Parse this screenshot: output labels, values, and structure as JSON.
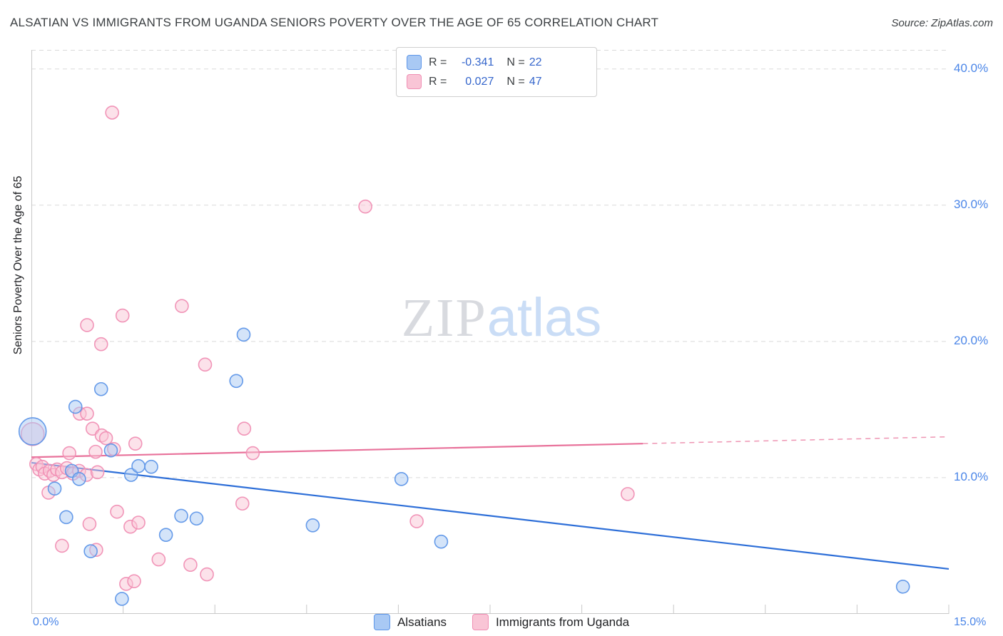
{
  "header": {
    "title": "ALSATIAN VS IMMIGRANTS FROM UGANDA SENIORS POVERTY OVER THE AGE OF 65 CORRELATION CHART",
    "source": "Source: ZipAtlas.com"
  },
  "watermark": {
    "part1": "ZIP",
    "part2": "atlas"
  },
  "axes": {
    "y_title": "Seniors Poverty Over the Age of 65",
    "x_min_label": "0.0%",
    "x_max_label": "15.0%"
  },
  "correlation_legend": {
    "rows": [
      {
        "r_label": "R =",
        "r_value": "-0.341",
        "n_label": "N =",
        "n_value": "22"
      },
      {
        "r_label": "R =",
        "r_value": "0.027",
        "n_label": "N =",
        "n_value": "47"
      }
    ]
  },
  "series_legend": [
    {
      "label": "Alsatians"
    },
    {
      "label": "Immigrants from Uganda"
    }
  ],
  "chart_data": {
    "type": "scatter",
    "title": "ALSATIAN VS IMMIGRANTS FROM UGANDA SENIORS POVERTY OVER THE AGE OF 65 CORRELATION CHART",
    "xlabel": "",
    "ylabel": "Seniors Poverty Over the Age of 65",
    "x_range": [
      0,
      15
    ],
    "y_range": [
      0,
      41.4
    ],
    "y_gridlines": [
      10,
      20,
      30,
      40
    ],
    "y_tick_labels": [
      {
        "value": 40,
        "label": "40.0%"
      },
      {
        "value": 30,
        "label": "30.0%"
      },
      {
        "value": 20,
        "label": "20.0%"
      },
      {
        "value": 10,
        "label": "10.0%"
      }
    ],
    "x_ticks": [
      1.5,
      3,
      4.5,
      6,
      7.5,
      9,
      10.5,
      12,
      13.5,
      15
    ],
    "series": [
      {
        "name": "Alsatians",
        "r": -0.341,
        "n": 22,
        "color_fill": "#A9C9F4",
        "color_stroke": "#5E96E8",
        "trend": {
          "x1": 0,
          "y1": 11.1,
          "x2": 15,
          "y2": 3.3,
          "solid_to": 15,
          "color": "#2E6FD8"
        },
        "points": [
          [
            0.02,
            13.4,
            19
          ],
          [
            0.38,
            9.2
          ],
          [
            0.57,
            7.1
          ],
          [
            0.72,
            15.2
          ],
          [
            0.66,
            10.5
          ],
          [
            0.78,
            9.9
          ],
          [
            0.97,
            4.6
          ],
          [
            1.14,
            16.5
          ],
          [
            1.3,
            12.0
          ],
          [
            1.48,
            1.1
          ],
          [
            1.63,
            10.2
          ],
          [
            1.75,
            10.85
          ],
          [
            1.96,
            10.8
          ],
          [
            2.2,
            5.8
          ],
          [
            2.45,
            7.2
          ],
          [
            2.7,
            7.0
          ],
          [
            3.35,
            17.1
          ],
          [
            3.47,
            20.5
          ],
          [
            4.6,
            6.5
          ],
          [
            6.05,
            9.9
          ],
          [
            6.7,
            5.3
          ],
          [
            14.25,
            2.0
          ]
        ]
      },
      {
        "name": "Immigrants from Uganda",
        "r": 0.027,
        "n": 47,
        "color_fill": "#F9C5D6",
        "color_stroke": "#F08FB4",
        "trend": {
          "x1": 0,
          "y1": 11.5,
          "x2": 15,
          "y2": 13.0,
          "solid_to": 10,
          "color": "#E8719A"
        },
        "points": [
          [
            0.02,
            13.2,
            16
          ],
          [
            0.08,
            11.0
          ],
          [
            0.13,
            10.6
          ],
          [
            0.18,
            10.8
          ],
          [
            0.22,
            10.3
          ],
          [
            0.3,
            10.5
          ],
          [
            0.36,
            10.2
          ],
          [
            0.42,
            10.6
          ],
          [
            0.5,
            10.4
          ],
          [
            0.58,
            10.7
          ],
          [
            0.68,
            10.3
          ],
          [
            0.78,
            10.5
          ],
          [
            0.9,
            10.2
          ],
          [
            1.08,
            10.4
          ],
          [
            0.62,
            11.8
          ],
          [
            1.0,
            13.6
          ],
          [
            1.15,
            13.1
          ],
          [
            1.22,
            12.9
          ],
          [
            1.35,
            12.1
          ],
          [
            1.7,
            12.5
          ],
          [
            1.05,
            11.9
          ],
          [
            0.79,
            14.7
          ],
          [
            0.91,
            14.7
          ],
          [
            0.91,
            21.2
          ],
          [
            1.14,
            19.8
          ],
          [
            1.49,
            21.9
          ],
          [
            1.32,
            36.8
          ],
          [
            2.46,
            22.6
          ],
          [
            2.84,
            18.3
          ],
          [
            5.46,
            29.9
          ],
          [
            0.28,
            8.9
          ],
          [
            0.5,
            5.0
          ],
          [
            0.95,
            6.6
          ],
          [
            1.06,
            4.7
          ],
          [
            1.4,
            7.5
          ],
          [
            1.62,
            6.4
          ],
          [
            1.75,
            6.7
          ],
          [
            1.55,
            2.2
          ],
          [
            1.68,
            2.4
          ],
          [
            2.08,
            4.0
          ],
          [
            2.6,
            3.6
          ],
          [
            2.87,
            2.9
          ],
          [
            3.48,
            13.6
          ],
          [
            3.62,
            11.8
          ],
          [
            3.45,
            8.1
          ],
          [
            6.3,
            6.8
          ],
          [
            9.75,
            8.8
          ]
        ]
      }
    ],
    "legend_position": "bottom-center",
    "grid": "horizontal-dashed"
  }
}
